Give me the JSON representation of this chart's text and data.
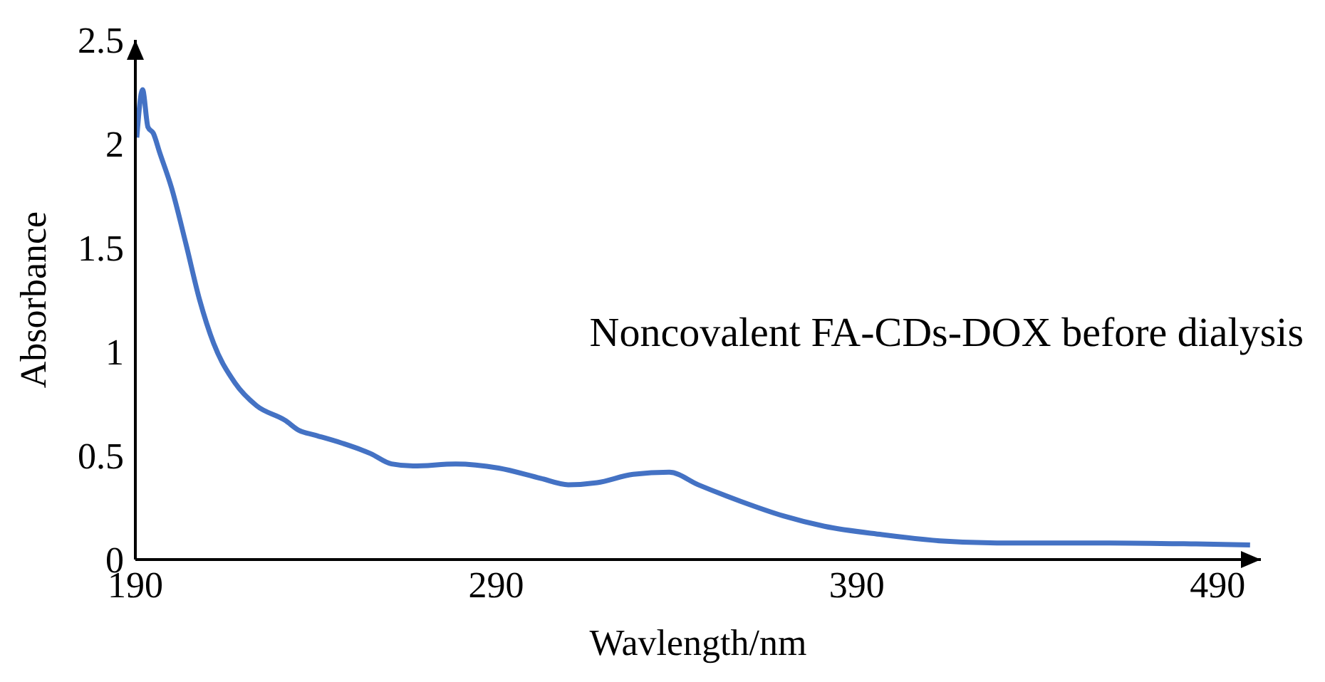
{
  "chart_data": {
    "type": "line",
    "xlabel": "Wavlength/nm",
    "ylabel": "Absorbance",
    "annotations": [
      "Noncovalent FA-CDs-DOX before dialysis"
    ],
    "xlim": [
      190,
      502
    ],
    "xticks": [
      190,
      290,
      390,
      490
    ],
    "ylim": [
      0,
      2.5
    ],
    "yticks": [
      0,
      0.5,
      1,
      1.5,
      2,
      2.5
    ],
    "grid": false,
    "legend": false,
    "marker": "none",
    "line_style": "solid",
    "series": [
      {
        "color": "#4472c4",
        "x": [
          190.4,
          192,
          193.5,
          195,
          196.7,
          200,
          204,
          207.8,
          211.7,
          217.6,
          223.6,
          231.5,
          235.5,
          239.5,
          247.3,
          255.2,
          261,
          267,
          278.8,
          290.7,
          302.5,
          310,
          318,
          328,
          338,
          346,
          357.8,
          369.6,
          381,
          397,
          413,
          428.8,
          460,
          484,
          499
        ],
        "values": [
          2.03,
          2.26,
          2.08,
          2.05,
          1.96,
          1.79,
          1.52,
          1.25,
          1.04,
          0.85,
          0.74,
          0.67,
          0.62,
          0.6,
          0.56,
          0.51,
          0.46,
          0.45,
          0.46,
          0.44,
          0.39,
          0.36,
          0.37,
          0.41,
          0.42,
          0.36,
          0.28,
          0.21,
          0.16,
          0.12,
          0.09,
          0.08,
          0.08,
          0.075,
          0.07
        ]
      }
    ]
  }
}
